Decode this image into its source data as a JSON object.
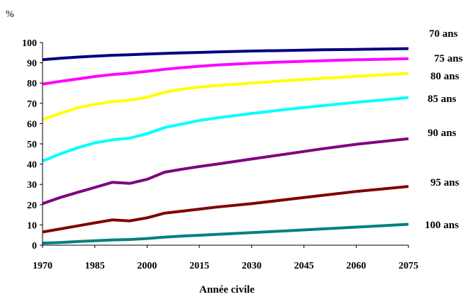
{
  "chart_data": {
    "type": "line",
    "xlabel": "Année civile",
    "ylabel": "%",
    "xlim": [
      1970,
      2075
    ],
    "ylim": [
      0,
      100
    ],
    "x_ticks": [
      "1970",
      "1985",
      "2000",
      "2015",
      "2030",
      "2045",
      "2060",
      "2075"
    ],
    "y_ticks": [
      "0",
      "10",
      "20",
      "30",
      "40",
      "50",
      "60",
      "70",
      "80",
      "90",
      "100"
    ],
    "grid": false,
    "legend": "direct labels right of lines",
    "x": [
      1970,
      1975,
      1980,
      1985,
      1990,
      1995,
      2000,
      2005,
      2010,
      2015,
      2020,
      2030,
      2040,
      2050,
      2060,
      2075
    ],
    "series": [
      {
        "name": "70 ans",
        "color": "#000080",
        "values": [
          91.5,
          92.2,
          92.8,
          93.3,
          93.7,
          94.0,
          94.3,
          94.6,
          94.9,
          95.1,
          95.4,
          95.8,
          96.1,
          96.4,
          96.6,
          97.0
        ]
      },
      {
        "name": "75 ans",
        "color": "#ff00ff",
        "values": [
          79.5,
          80.8,
          82.0,
          83.2,
          84.2,
          84.9,
          85.8,
          86.8,
          87.6,
          88.3,
          88.9,
          89.8,
          90.5,
          91.0,
          91.5,
          92.0
        ]
      },
      {
        "name": "80 ans",
        "color": "#ffff00",
        "values": [
          62.0,
          65.0,
          67.8,
          69.5,
          70.8,
          71.5,
          73.0,
          75.5,
          77.0,
          78.0,
          78.8,
          80.0,
          81.2,
          82.3,
          83.3,
          84.8
        ]
      },
      {
        "name": "85 ans",
        "color": "#00ffff",
        "values": [
          41.5,
          45.0,
          48.0,
          50.5,
          52.0,
          52.8,
          55.0,
          58.0,
          59.8,
          61.5,
          62.8,
          65.0,
          67.0,
          68.8,
          70.5,
          72.8
        ]
      },
      {
        "name": "90 ans",
        "color": "#800080",
        "values": [
          20.5,
          23.5,
          26.0,
          28.5,
          31.0,
          30.5,
          32.5,
          36.0,
          37.5,
          38.8,
          40.0,
          42.5,
          45.0,
          47.5,
          49.8,
          52.5
        ]
      },
      {
        "name": "95 ans",
        "color": "#800000",
        "values": [
          6.5,
          8.0,
          9.5,
          11.0,
          12.5,
          12.0,
          13.5,
          15.8,
          16.8,
          17.8,
          18.8,
          20.5,
          22.5,
          24.5,
          26.5,
          29.0
        ]
      },
      {
        "name": "100 ans",
        "color": "#008080",
        "values": [
          1.0,
          1.3,
          1.8,
          2.2,
          2.6,
          2.8,
          3.3,
          4.0,
          4.5,
          4.9,
          5.3,
          6.2,
          7.1,
          8.0,
          8.9,
          10.3
        ]
      }
    ]
  }
}
